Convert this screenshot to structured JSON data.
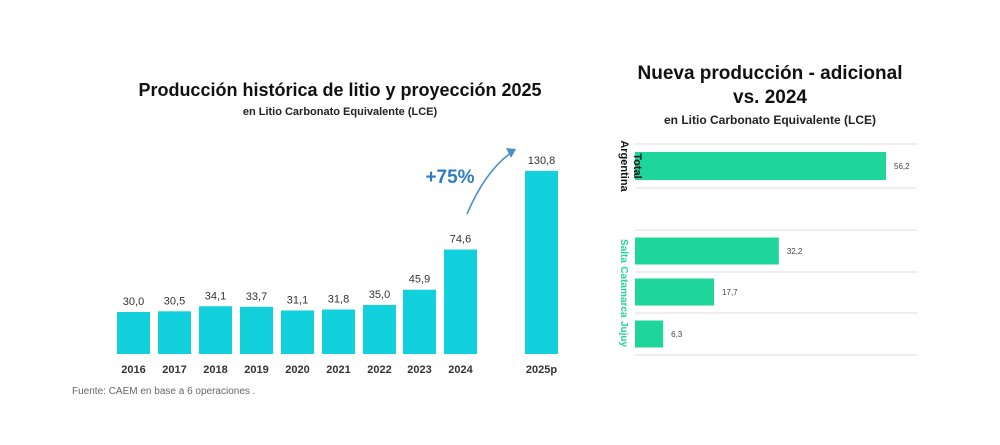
{
  "chart_data": [
    {
      "type": "bar",
      "title": "Producción histórica de litio y proyección 2025",
      "subtitle": "en Litio Carbonato Equivalente (LCE)",
      "categories": [
        "2016",
        "2017",
        "2018",
        "2019",
        "2020",
        "2021",
        "2022",
        "2023",
        "2024",
        "2025p"
      ],
      "values": [
        30.0,
        30.5,
        34.1,
        33.7,
        31.1,
        31.8,
        35.0,
        45.9,
        74.6,
        130.8
      ],
      "value_labels": [
        "30,0",
        "30,5",
        "34,1",
        "33,7",
        "31,1",
        "31,8",
        "35,0",
        "45,9",
        "74,6",
        "130,8"
      ],
      "ylim": [
        0,
        140
      ],
      "grid": false,
      "annotation": "+75%",
      "colors": {
        "bar": "#12D1DC",
        "annotation": "#2F7CC4",
        "arrow": "#4A90C8"
      }
    },
    {
      "type": "bar",
      "orientation": "horizontal",
      "title_line1": "Nueva producción -  adicional",
      "title_line2": "vs. 2024",
      "subtitle": "en Litio Carbonato Equivalente (LCE)",
      "categories": [
        "Total Argentina",
        "Salta",
        "Catamarca",
        "Jujuy"
      ],
      "category_lines": [
        [
          "Total",
          "Argentina"
        ],
        [
          "Salta"
        ],
        [
          "Catamarca"
        ],
        [
          "Jujuy"
        ]
      ],
      "values": [
        56.2,
        32.2,
        17.7,
        6.3
      ],
      "value_labels": [
        "56,2",
        "32,2",
        "17,7",
        "6,3"
      ],
      "xlim": [
        0,
        60
      ],
      "grid": true,
      "colors": {
        "bar": "#1ED69A",
        "label_total": "#111111",
        "label_province": "#1ED69A"
      }
    }
  ],
  "source": "Fuente: CAEM en base a 6 operaciones ."
}
